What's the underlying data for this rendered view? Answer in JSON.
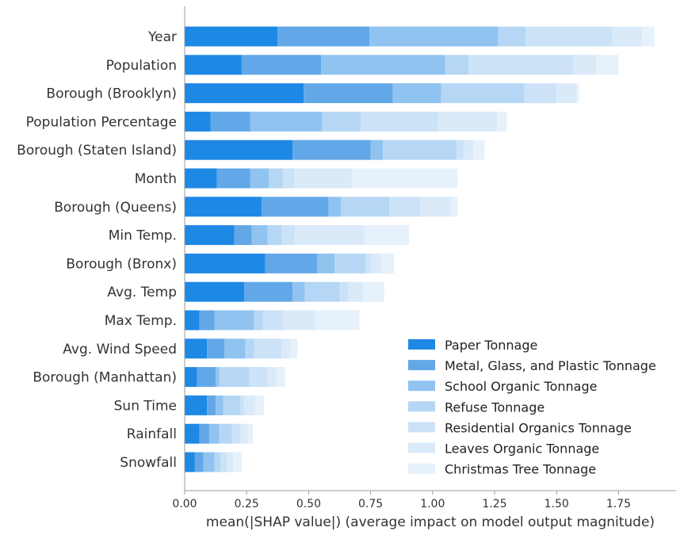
{
  "chart_data": {
    "type": "bar",
    "orientation": "horizontal",
    "stacked": true,
    "title": "",
    "xlabel": "mean(|SHAP value|) (average impact on model output magnitude)",
    "ylabel": "",
    "xlim": [
      0,
      1.98
    ],
    "xticks": [
      {
        "value": 0.0,
        "label": "0.00"
      },
      {
        "value": 0.25,
        "label": "0.25"
      },
      {
        "value": 0.5,
        "label": "0.50"
      },
      {
        "value": 0.75,
        "label": "0.75"
      },
      {
        "value": 1.0,
        "label": "1.00"
      },
      {
        "value": 1.25,
        "label": "1.25"
      },
      {
        "value": 1.5,
        "label": "1.50"
      },
      {
        "value": 1.75,
        "label": "1.75"
      }
    ],
    "grid": false,
    "legend_position": "lower-right",
    "categories": [
      "Year",
      "Population",
      "Borough (Brooklyn)",
      "Population Percentage",
      "Borough (Staten Island)",
      "Month",
      "Borough (Queens)",
      "Min Temp.",
      "Borough (Bronx)",
      "Avg. Temp",
      "Max Temp.",
      "Avg. Wind Speed",
      "Borough (Manhattan)",
      "Sun Time",
      "Rainfall",
      "Snowfall"
    ],
    "series": [
      {
        "name": "Paper Tonnage",
        "color": "#1e88e5",
        "values": [
          0.375,
          0.23,
          0.48,
          0.105,
          0.435,
          0.13,
          0.31,
          0.2,
          0.325,
          0.24,
          0.06,
          0.09,
          0.05,
          0.09,
          0.06,
          0.04
        ]
      },
      {
        "name": "Metal, Glass, and Plastic Tonnage",
        "color": "#62a8e8",
        "values": [
          0.37,
          0.32,
          0.36,
          0.16,
          0.315,
          0.135,
          0.27,
          0.07,
          0.21,
          0.195,
          0.06,
          0.07,
          0.075,
          0.035,
          0.04,
          0.035
        ]
      },
      {
        "name": "School Organic Tonnage",
        "color": "#90c3f0",
        "values": [
          0.52,
          0.5,
          0.195,
          0.29,
          0.05,
          0.075,
          0.05,
          0.065,
          0.07,
          0.05,
          0.16,
          0.085,
          0.015,
          0.03,
          0.04,
          0.045
        ]
      },
      {
        "name": "Refuse Tonnage",
        "color": "#b5d7f5",
        "values": [
          0.11,
          0.095,
          0.335,
          0.155,
          0.295,
          0.055,
          0.195,
          0.055,
          0.125,
          0.14,
          0.035,
          0.035,
          0.12,
          0.07,
          0.05,
          0.025
        ]
      },
      {
        "name": "Residential Organics Tonnage",
        "color": "#cbe2f7",
        "values": [
          0.35,
          0.42,
          0.13,
          0.31,
          0.03,
          0.05,
          0.125,
          0.055,
          0.02,
          0.035,
          0.08,
          0.11,
          0.075,
          0.015,
          0.035,
          0.025
        ]
      },
      {
        "name": "Leaves Organic Tonnage",
        "color": "#daeaf9",
        "values": [
          0.12,
          0.095,
          0.08,
          0.24,
          0.04,
          0.23,
          0.125,
          0.28,
          0.045,
          0.06,
          0.13,
          0.035,
          0.035,
          0.045,
          0.03,
          0.025
        ]
      },
      {
        "name": "Christmas Tree Tonnage",
        "color": "#e6f1fb",
        "values": [
          0.05,
          0.09,
          0.01,
          0.04,
          0.045,
          0.425,
          0.025,
          0.18,
          0.05,
          0.085,
          0.18,
          0.03,
          0.035,
          0.035,
          0.02,
          0.035
        ]
      }
    ]
  }
}
